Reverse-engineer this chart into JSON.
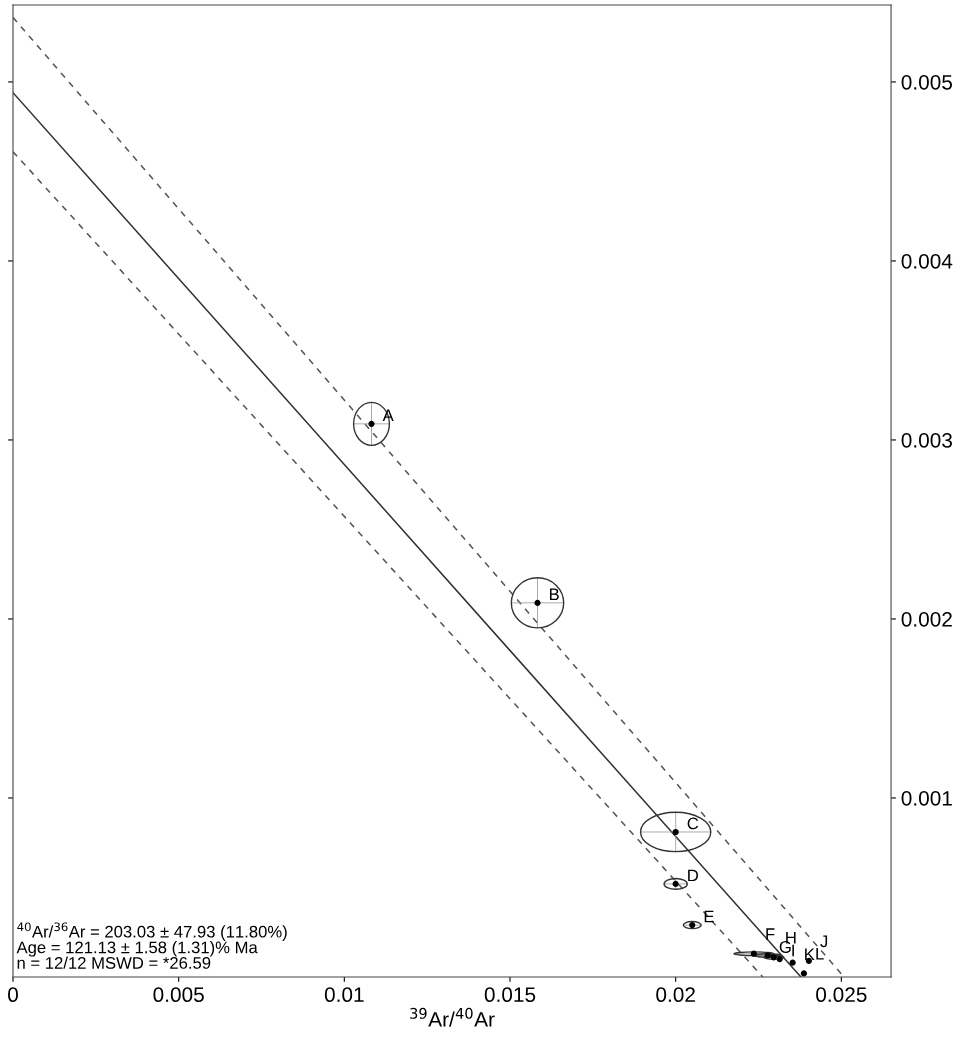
{
  "chart_data": {
    "type": "scatter",
    "xlabel": "$^{39}$Ar/$^{40}$Ar",
    "xlim": [
      0,
      0.0265
    ],
    "ylim": [
      0,
      0.00543
    ],
    "xticks": [
      0,
      0.005,
      0.01,
      0.015,
      0.02,
      0.025
    ],
    "yticks": [
      0.001,
      0.002,
      0.003,
      0.004,
      0.005
    ],
    "grid": false,
    "legend": false,
    "marker": "circle",
    "series": [
      {
        "color": "#000000",
        "x": [
          0.01082,
          0.01583,
          0.02,
          0.02,
          0.0205,
          0.02236,
          0.02278,
          0.02296,
          0.02314,
          0.02402,
          0.02353,
          0.02387
        ],
        "values": [
          0.00309,
          0.00209,
          0.00081,
          0.00052,
          0.00029,
          0.00013,
          0.00012,
          0.00011,
          0.0001,
          9e-05,
          8e-05,
          2e-05
        ],
        "xerrors": [
          0.00054,
          0.00079,
          0.00106,
          0.00035,
          0.00027,
          0.0006,
          0.0004,
          0.0003,
          null,
          null,
          null,
          null
        ],
        "errors": [
          0.00012,
          0.00014,
          0.00011,
          3e-05,
          2e-05,
          1e-05,
          1e-05,
          1e-05,
          null,
          null,
          null,
          null
        ]
      },
      {
        "type": "line",
        "color": "#333333",
        "line_style": "solid",
        "marker": "none",
        "x": [
          0,
          0.02378
        ],
        "values": [
          0.00494,
          0
        ]
      },
      {
        "type": "line",
        "color": "#555555",
        "line_style": "dashed",
        "marker": "none",
        "x": [
          0,
          0.02508
        ],
        "values": [
          0.00536,
          0
        ]
      },
      {
        "type": "line",
        "color": "#555555",
        "line_style": "dashed",
        "marker": "none",
        "x": [
          0,
          0.02263
        ],
        "values": [
          0.00461,
          0
        ]
      }
    ],
    "annotations": [
      {
        "text": "A",
        "x": 0.01082,
        "y": 0.00309
      },
      {
        "text": "B",
        "x": 0.01583,
        "y": 0.00209
      },
      {
        "text": "C",
        "x": 0.02,
        "y": 0.00081
      },
      {
        "text": "D",
        "x": 0.02,
        "y": 0.00052
      },
      {
        "text": "E",
        "x": 0.0205,
        "y": 0.00029
      },
      {
        "text": "F",
        "x": 0.02236,
        "y": 0.00013
      },
      {
        "text": "G",
        "x": 0.02278,
        "y": 0.00012
      },
      {
        "text": "H",
        "x": 0.02296,
        "y": 0.00011
      },
      {
        "text": "I",
        "x": 0.02314,
        "y": 0.0001
      },
      {
        "text": "J",
        "x": 0.02402,
        "y": 9e-05
      },
      {
        "text": "K",
        "x": 0.02353,
        "y": 8e-05
      },
      {
        "text": "L",
        "x": 0.02387,
        "y": 2e-05
      },
      "$^{40}$Ar/$^{36}$Ar = 203.03 ± 47.93 (11.80%)\nAge = 121.13 ± 1.58 (1.31)% Ma\nn = 12/12 MSWD = *26.59"
    ]
  }
}
